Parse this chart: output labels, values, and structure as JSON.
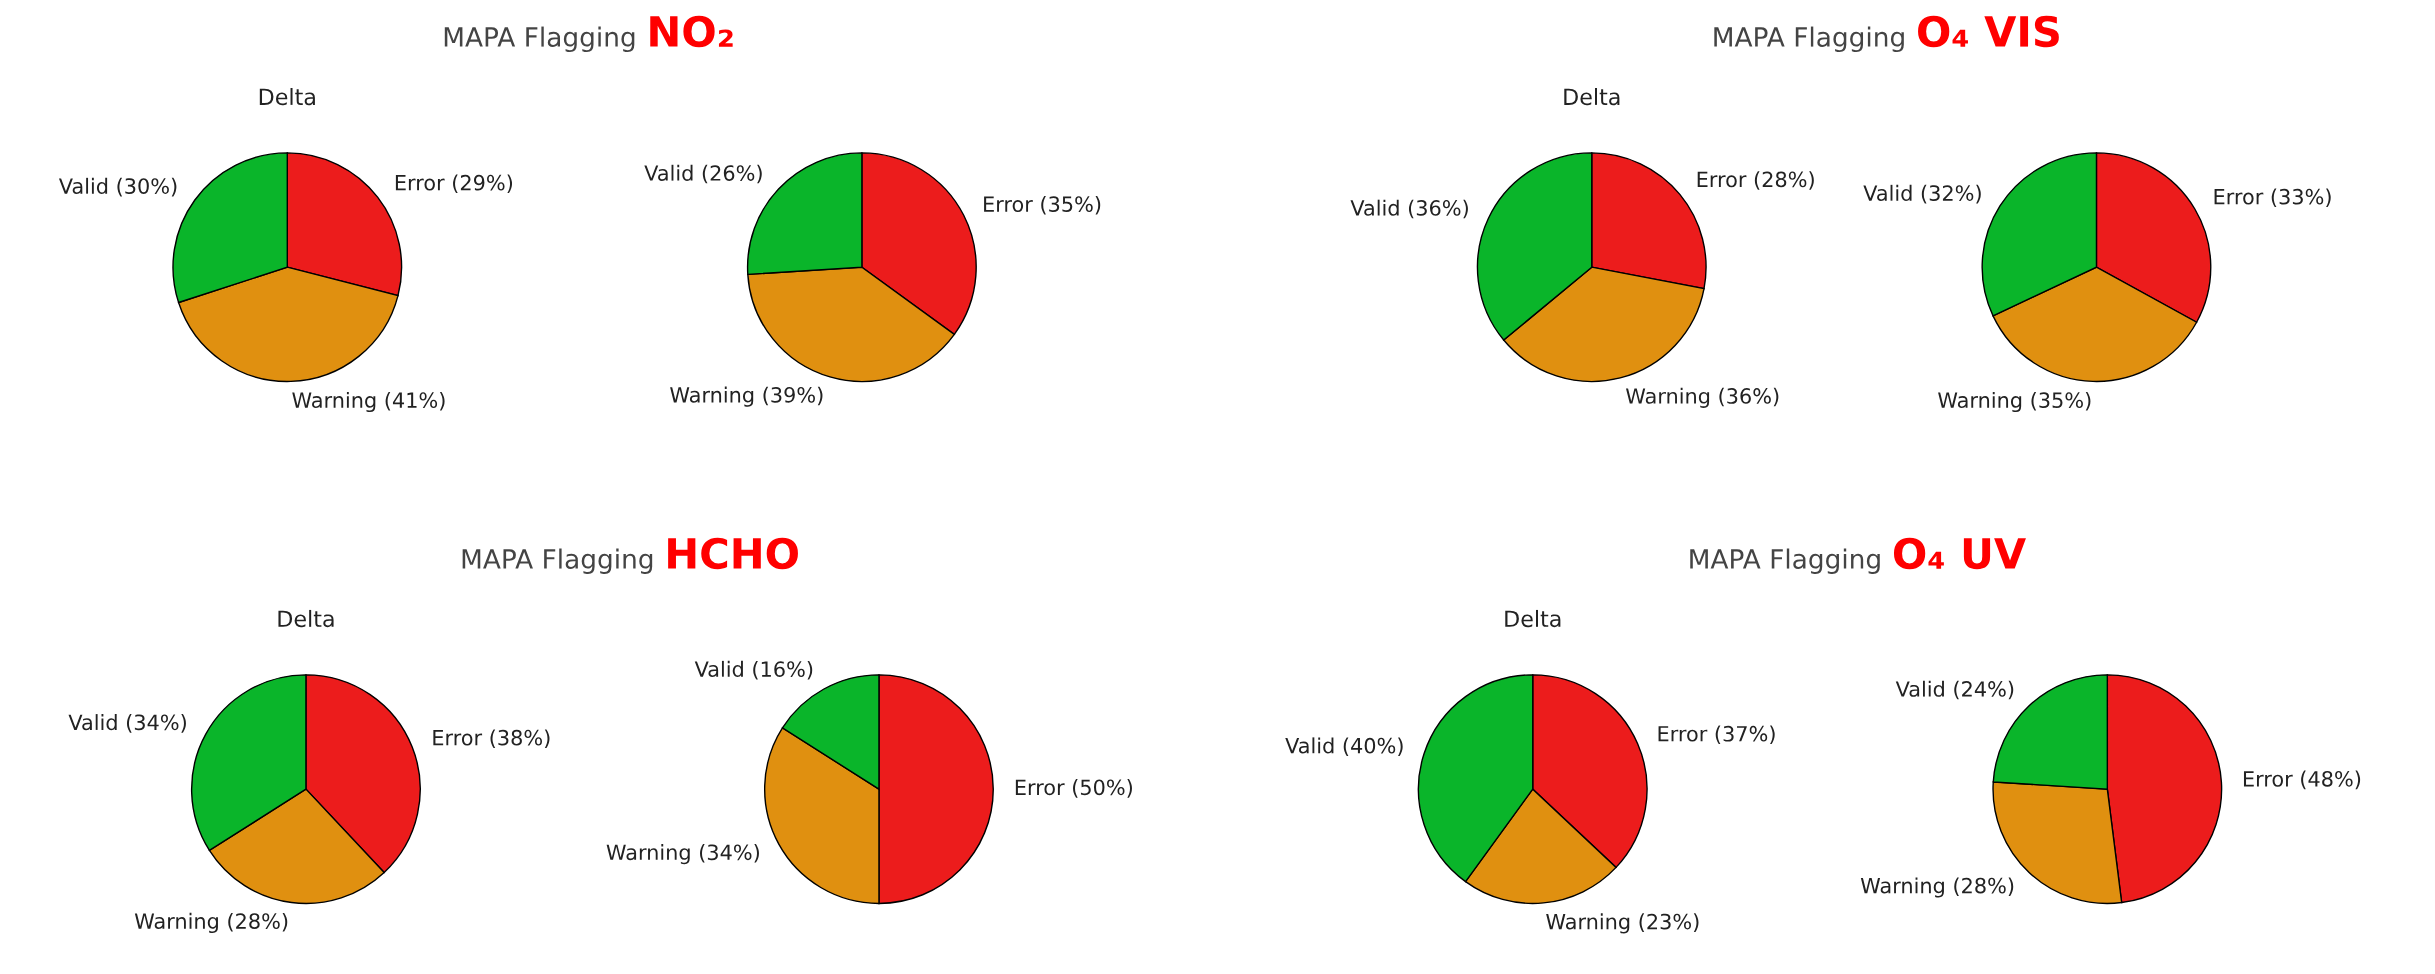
{
  "chart_data": [
    {
      "type": "pie",
      "title": "Delta",
      "annotations": [
        "MAPA Flagging",
        "NO₂"
      ],
      "categories": [
        "Error (29%)",
        "Warning (41%)",
        "Valid (30%)"
      ],
      "values": [
        29,
        41,
        30
      ],
      "colors": [
        "#ec1c1c",
        "#e09010",
        "#0ab52a"
      ]
    },
    {
      "type": "pie",
      "categories": [
        "Error (35%)",
        "Warning (39%)",
        "Valid (26%)"
      ],
      "values": [
        35,
        39,
        26
      ],
      "colors": [
        "#ec1c1c",
        "#e09010",
        "#0ab52a"
      ]
    },
    {
      "type": "pie",
      "title": "Delta",
      "annotations": [
        "MAPA Flagging",
        "O₄ VIS"
      ],
      "categories": [
        "Error (28%)",
        "Warning (36%)",
        "Valid (36%)"
      ],
      "values": [
        28,
        36,
        36
      ],
      "colors": [
        "#ec1c1c",
        "#e09010",
        "#0ab52a"
      ]
    },
    {
      "type": "pie",
      "categories": [
        "Error (33%)",
        "Warning (35%)",
        "Valid (32%)"
      ],
      "values": [
        33,
        35,
        32
      ],
      "colors": [
        "#ec1c1c",
        "#e09010",
        "#0ab52a"
      ]
    },
    {
      "type": "pie",
      "title": "Delta",
      "annotations": [
        "MAPA Flagging",
        "HCHO"
      ],
      "categories": [
        "Error (38%)",
        "Warning (28%)",
        "Valid (34%)"
      ],
      "values": [
        38,
        28,
        34
      ],
      "colors": [
        "#ec1c1c",
        "#e09010",
        "#0ab52a"
      ]
    },
    {
      "type": "pie",
      "categories": [
        "Error (50%)",
        "Warning (34%)",
        "Valid (16%)"
      ],
      "values": [
        50,
        34,
        16
      ],
      "colors": [
        "#ec1c1c",
        "#e09010",
        "#0ab52a"
      ]
    },
    {
      "type": "pie",
      "title": "Delta",
      "annotations": [
        "MAPA Flagging",
        "O₄ UV"
      ],
      "categories": [
        "Error (37%)",
        "Warning (23%)",
        "Valid (40%)"
      ],
      "values": [
        37,
        23,
        40
      ],
      "colors": [
        "#ec1c1c",
        "#e09010",
        "#0ab52a"
      ]
    },
    {
      "type": "pie",
      "categories": [
        "Error (48%)",
        "Warning (28%)",
        "Valid (24%)"
      ],
      "values": [
        48,
        28,
        24
      ],
      "colors": [
        "#ec1c1c",
        "#e09010",
        "#0ab52a"
      ]
    }
  ]
}
